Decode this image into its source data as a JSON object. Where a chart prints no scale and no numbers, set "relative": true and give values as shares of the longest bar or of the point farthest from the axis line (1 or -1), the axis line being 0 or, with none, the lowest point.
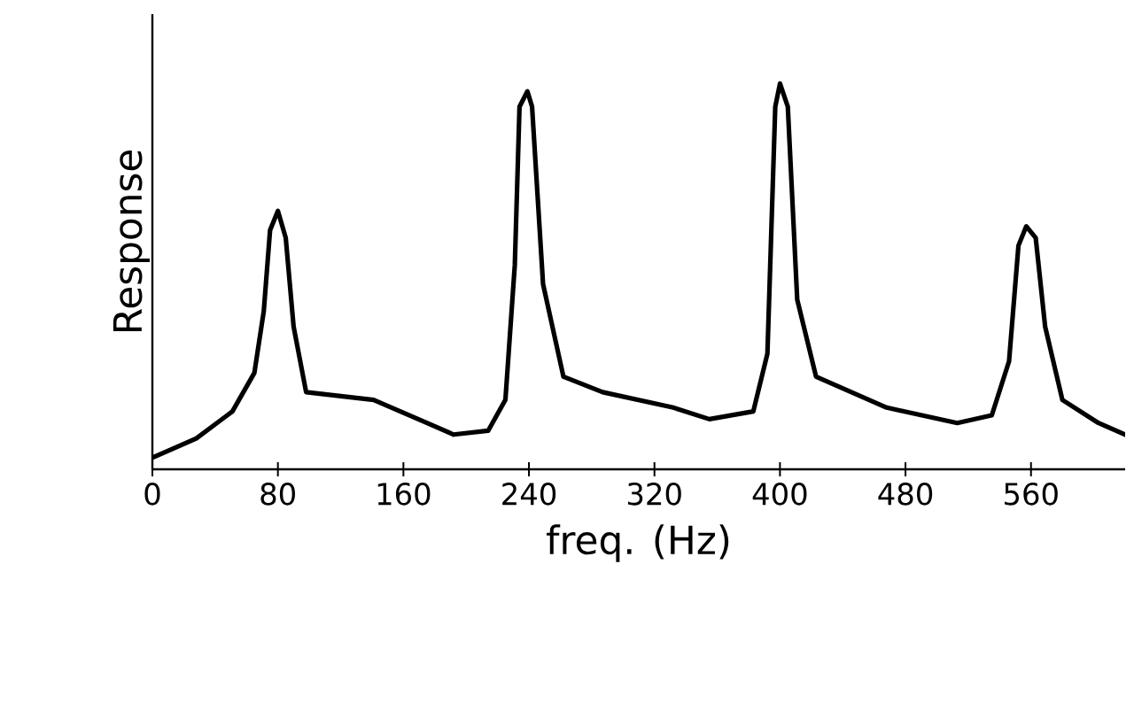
{
  "chart_data": {
    "type": "line",
    "xlabel": "freq. (Hz)",
    "ylabel": "Response",
    "relative": true,
    "color": "#000000",
    "marker": "none",
    "line_style": "solid",
    "grid": false,
    "x": [
      0,
      28,
      51,
      65,
      71,
      75,
      80,
      85,
      90,
      98,
      141,
      175,
      192,
      214,
      225,
      231,
      234,
      239,
      242,
      249,
      262,
      287,
      332,
      355,
      383,
      392,
      397,
      400,
      405,
      411,
      423,
      468,
      513,
      535,
      546,
      552,
      557,
      563,
      569,
      580,
      603,
      620
    ],
    "values": [
      0.03,
      0.08,
      0.15,
      0.25,
      0.41,
      0.62,
      0.67,
      0.6,
      0.37,
      0.2,
      0.18,
      0.12,
      0.09,
      0.1,
      0.18,
      0.53,
      0.94,
      0.98,
      0.94,
      0.48,
      0.24,
      0.2,
      0.16,
      0.13,
      0.15,
      0.3,
      0.94,
      1.0,
      0.94,
      0.44,
      0.24,
      0.16,
      0.12,
      0.14,
      0.28,
      0.58,
      0.63,
      0.6,
      0.37,
      0.18,
      0.12,
      0.09
    ],
    "xlim": [
      0,
      620
    ],
    "xticks": [
      0,
      80,
      160,
      240,
      320,
      400,
      480,
      560
    ]
  }
}
